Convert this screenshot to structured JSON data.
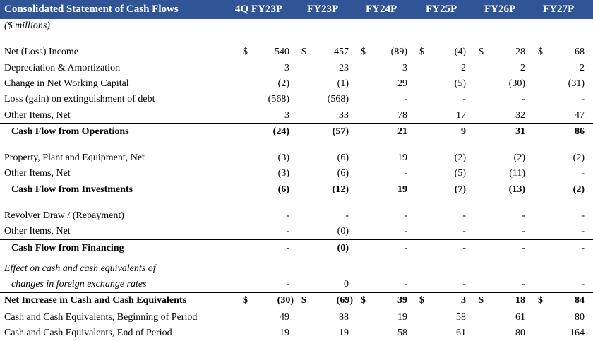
{
  "header": {
    "title": "Consolidated Statement of Cash Flows",
    "columns": [
      "4Q FY23P",
      "FY23P",
      "FY24P",
      "FY25P",
      "FY26P",
      "FY27P"
    ]
  },
  "unit_note": "($ millions)",
  "rows": {
    "net_income": {
      "label": "Net (Loss) Income",
      "cur": "$",
      "v": [
        "540",
        "457",
        "(89)",
        "(4)",
        "28",
        "68"
      ]
    },
    "dep_amort": {
      "label": "Depreciation & Amortization",
      "v": [
        "3",
        "23",
        "3",
        "2",
        "2",
        "2"
      ]
    },
    "nwc": {
      "label": "Change in Net Working Capital",
      "v": [
        "(2)",
        "(1)",
        "29",
        "(5)",
        "(30)",
        "(31)"
      ]
    },
    "loss_gain": {
      "label": "Loss (gain) on extinguishment of debt",
      "v": [
        "(568)",
        "(568)",
        "-",
        "-",
        "-",
        "-"
      ]
    },
    "other_ops": {
      "label": "Other Items, Net",
      "v": [
        "3",
        "33",
        "78",
        "17",
        "32",
        "47"
      ]
    },
    "cfo": {
      "label": "Cash Flow from Operations",
      "v": [
        "(24)",
        "(57)",
        "21",
        "9",
        "31",
        "86"
      ]
    },
    "ppe": {
      "label": "Property, Plant and Equipment, Net",
      "v": [
        "(3)",
        "(6)",
        "19",
        "(2)",
        "(2)",
        "(2)"
      ]
    },
    "other_inv": {
      "label": "Other Items, Net",
      "v": [
        "(3)",
        "(6)",
        "-",
        "(5)",
        "(11)",
        "-"
      ]
    },
    "cfi": {
      "label": "Cash Flow from Investments",
      "v": [
        "(6)",
        "(12)",
        "19",
        "(7)",
        "(13)",
        "(2)"
      ]
    },
    "revolver": {
      "label": "Revolver Draw / (Repayment)",
      "v": [
        "-",
        "-",
        "-",
        "-",
        "-",
        "-"
      ]
    },
    "other_fin": {
      "label": "Other Items, Net",
      "v": [
        "-",
        "(0)",
        "-",
        "-",
        "-",
        "-"
      ]
    },
    "cff": {
      "label": "Cash Flow from Financing",
      "v": [
        "-",
        "(0)",
        "-",
        "-",
        "-",
        "-"
      ]
    },
    "fx_line1": {
      "label": "Effect on cash and cash equivalents of"
    },
    "fx_line2": {
      "label": "changes in foreign exchange rates",
      "v": [
        "-",
        "0",
        "-",
        "-",
        "-",
        "-"
      ]
    },
    "net_increase": {
      "label": "Net Increase in Cash and Cash Equivalents",
      "cur": "$",
      "v": [
        "(30)",
        "(69)",
        "39",
        "3",
        "18",
        "84"
      ]
    },
    "cash_begin": {
      "label": "Cash and Cash Equivalents, Beginning of Period",
      "v": [
        "49",
        "88",
        "19",
        "58",
        "61",
        "80"
      ]
    },
    "cash_end": {
      "label": "Cash and Cash Equivalents, End of Period",
      "v": [
        "19",
        "19",
        "58",
        "61",
        "80",
        "164"
      ]
    }
  }
}
